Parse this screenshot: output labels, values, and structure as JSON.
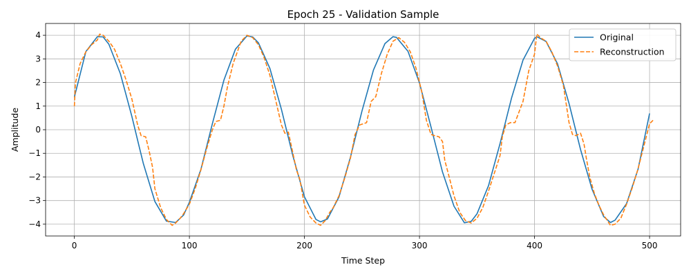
{
  "chart_data": {
    "type": "line",
    "title": "Epoch 25 - Validation Sample",
    "xlabel": "Time Step",
    "ylabel": "Amplitude",
    "xlim": [
      -25,
      527
    ],
    "ylim": [
      -4.5,
      4.5
    ],
    "x_ticks": [
      0,
      100,
      200,
      300,
      400,
      500
    ],
    "x_tick_labels": [
      "0",
      "100",
      "200",
      "300",
      "400",
      "500"
    ],
    "y_ticks": [
      -4,
      -3,
      -2,
      -1,
      0,
      1,
      2,
      3,
      4
    ],
    "y_tick_labels": [
      "−4",
      "−3",
      "−2",
      "−1",
      "0",
      "1",
      "2",
      "3",
      "4"
    ],
    "grid": true,
    "legend_position": "top-right",
    "series": [
      {
        "name": "Original",
        "color": "#1f77b4",
        "style": "solid",
        "x": [
          0,
          10,
          20,
          25,
          30,
          40,
          50,
          56,
          60,
          70,
          80,
          88,
          95,
          100,
          110,
          120,
          130,
          140,
          150,
          155,
          160,
          170,
          180,
          190,
          200,
          210,
          214,
          220,
          230,
          240,
          250,
          260,
          270,
          277,
          280,
          290,
          300,
          310,
          320,
          330,
          339,
          345,
          350,
          360,
          370,
          380,
          390,
          400,
          402,
          410,
          420,
          430,
          440,
          450,
          460,
          466,
          470,
          480,
          490,
          500
        ],
        "y": [
          1.38,
          3.31,
          3.94,
          3.93,
          3.62,
          2.37,
          0.56,
          -0.65,
          -1.44,
          -3.04,
          -3.87,
          -3.93,
          -3.61,
          -3.07,
          -1.68,
          0.26,
          2.1,
          3.41,
          3.97,
          3.93,
          3.68,
          2.59,
          0.86,
          -1.12,
          -2.84,
          -3.8,
          -3.9,
          -3.78,
          -2.85,
          -1.16,
          0.79,
          2.53,
          3.65,
          3.94,
          3.91,
          3.32,
          1.98,
          0.12,
          -1.79,
          -3.24,
          -3.94,
          -3.88,
          -3.56,
          -2.37,
          -0.59,
          1.34,
          2.95,
          3.87,
          3.94,
          3.74,
          2.79,
          1.11,
          -0.84,
          -2.52,
          -3.67,
          -3.93,
          -3.83,
          -3.13,
          -1.67,
          0.69
        ]
      },
      {
        "name": "Reconstruction",
        "color": "#ff7f0e",
        "style": "dashed",
        "x": [
          0,
          1,
          5,
          10,
          15,
          20,
          22,
          25,
          30,
          35,
          40,
          45,
          50,
          55,
          58,
          62,
          65,
          68,
          70,
          75,
          80,
          85,
          88,
          92,
          95,
          100,
          105,
          110,
          115,
          120,
          123,
          127,
          130,
          133,
          138,
          145,
          150,
          155,
          160,
          165,
          170,
          175,
          180,
          183,
          186,
          190,
          193,
          196,
          200,
          205,
          210,
          214,
          218,
          222,
          225,
          230,
          235,
          240,
          244,
          248,
          251,
          254,
          258,
          262,
          267,
          272,
          277,
          282,
          287,
          292,
          297,
          302,
          306,
          310,
          313,
          317,
          320,
          322,
          325,
          330,
          335,
          340,
          345,
          350,
          355,
          360,
          365,
          370,
          372,
          375,
          379,
          383,
          390,
          395,
          400,
          402,
          405,
          410,
          415,
          420,
          425,
          430,
          433,
          436,
          440,
          443,
          445,
          448,
          452,
          456,
          460,
          466,
          470,
          475,
          480,
          485,
          490,
          495,
          500,
          503
        ],
        "y": [
          1.0,
          2.0,
          2.8,
          3.3,
          3.6,
          3.8,
          4.05,
          4.0,
          3.75,
          3.4,
          2.8,
          2.1,
          1.3,
          0.2,
          -0.25,
          -0.3,
          -0.9,
          -1.6,
          -2.5,
          -3.3,
          -3.8,
          -4.05,
          -3.95,
          -3.75,
          -3.55,
          -3.15,
          -2.5,
          -1.7,
          -0.8,
          0.0,
          0.35,
          0.4,
          1.0,
          1.8,
          2.8,
          3.75,
          4.0,
          3.9,
          3.6,
          3.05,
          2.3,
          1.25,
          0.2,
          -0.15,
          -0.1,
          -1.0,
          -1.7,
          -2.1,
          -3.2,
          -3.7,
          -3.95,
          -4.05,
          -3.85,
          -3.5,
          -3.3,
          -2.8,
          -2.05,
          -1.2,
          -0.2,
          0.2,
          0.25,
          0.3,
          1.2,
          1.4,
          2.4,
          3.2,
          3.75,
          3.9,
          3.7,
          3.3,
          2.6,
          1.6,
          0.4,
          -0.2,
          -0.25,
          -0.3,
          -0.5,
          -1.3,
          -1.85,
          -2.8,
          -3.5,
          -3.85,
          -3.95,
          -3.75,
          -3.3,
          -2.6,
          -1.85,
          -1.1,
          -0.3,
          0.2,
          0.3,
          0.3,
          1.2,
          2.5,
          3.2,
          4.05,
          3.9,
          3.75,
          3.3,
          2.7,
          1.9,
          0.3,
          -0.2,
          -0.25,
          -0.15,
          -0.6,
          -1.2,
          -2.0,
          -2.7,
          -3.2,
          -3.6,
          -4.05,
          -4.0,
          -3.75,
          -3.15,
          -2.45,
          -1.65,
          -0.7,
          0.25,
          0.4
        ]
      }
    ]
  }
}
